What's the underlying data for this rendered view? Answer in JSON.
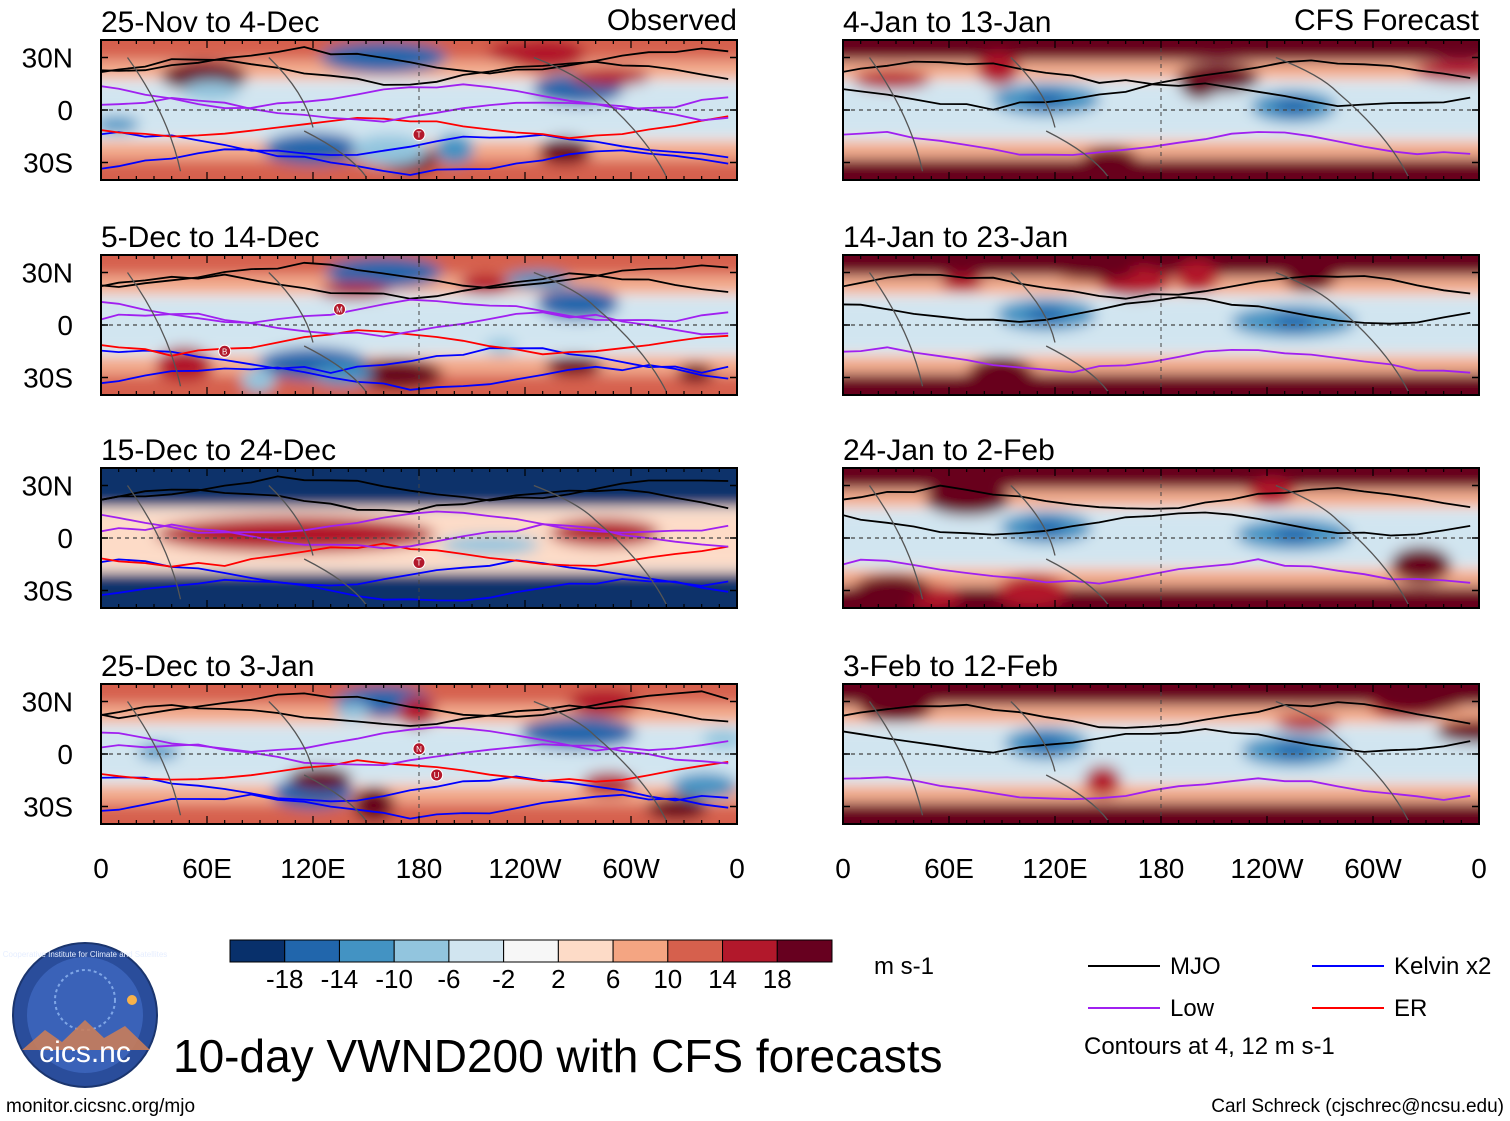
{
  "figure": {
    "title": "10-day VWND200 with CFS forecasts",
    "url": "monitor.cicsnc.org/mjo",
    "credit": "Carl Schreck (cjschrec@ncsu.edu)",
    "logo_text": "cics.nc",
    "logo_ring_text": "Cooperative Institute for Climate and Satellites"
  },
  "chart_data": {
    "type": "heatmap",
    "variable": "200-hPa meridional wind anomaly (VWND200)",
    "units": "m s-1",
    "column_labels": {
      "left": "Observed",
      "right": "CFS Forecast"
    },
    "x_ticks": [
      "0",
      "60E",
      "120E",
      "180",
      "120W",
      "60W",
      "0"
    ],
    "y_ticks": [
      "30N",
      "0",
      "30S"
    ],
    "lat_range": [
      -40,
      40
    ],
    "lon_range": [
      0,
      360
    ],
    "panels": [
      {
        "period": "25-Nov to 4-Dec",
        "source": "Observed",
        "markers": [
          "T"
        ]
      },
      {
        "period": "5-Dec to 14-Dec",
        "source": "Observed",
        "markers": [
          "M",
          "B"
        ]
      },
      {
        "period": "15-Dec to 24-Dec",
        "source": "Observed",
        "markers": [
          "T"
        ]
      },
      {
        "period": "25-Dec to 3-Jan",
        "source": "Observed",
        "markers": [
          "N",
          "U"
        ]
      },
      {
        "period": "4-Jan to 13-Jan",
        "source": "CFS Forecast",
        "markers": []
      },
      {
        "period": "14-Jan to 23-Jan",
        "source": "CFS Forecast",
        "markers": []
      },
      {
        "period": "24-Jan to 2-Feb",
        "source": "CFS Forecast",
        "markers": []
      },
      {
        "period": "3-Feb to 12-Feb",
        "source": "CFS Forecast",
        "markers": []
      }
    ],
    "colorbar": {
      "labels": [
        "-18",
        "-14",
        "-10",
        "-6",
        "-2",
        "2",
        "6",
        "10",
        "14",
        "18"
      ],
      "units": "m s-1",
      "colors": [
        "#08306b",
        "#2166ac",
        "#4393c3",
        "#92c5de",
        "#d1e5f0",
        "#f7f7f7",
        "#fddbc7",
        "#f4a582",
        "#d6604d",
        "#b2182b",
        "#67001f"
      ]
    },
    "contour_legend": [
      {
        "label": "MJO",
        "color": "#000000"
      },
      {
        "label": "Kelvin x2",
        "color": "#0000ff"
      },
      {
        "label": "Low",
        "color": "#a020f0"
      },
      {
        "label": "ER",
        "color": "#ff0000"
      }
    ],
    "contour_note": "Contours at 4, 12 m s-1"
  }
}
